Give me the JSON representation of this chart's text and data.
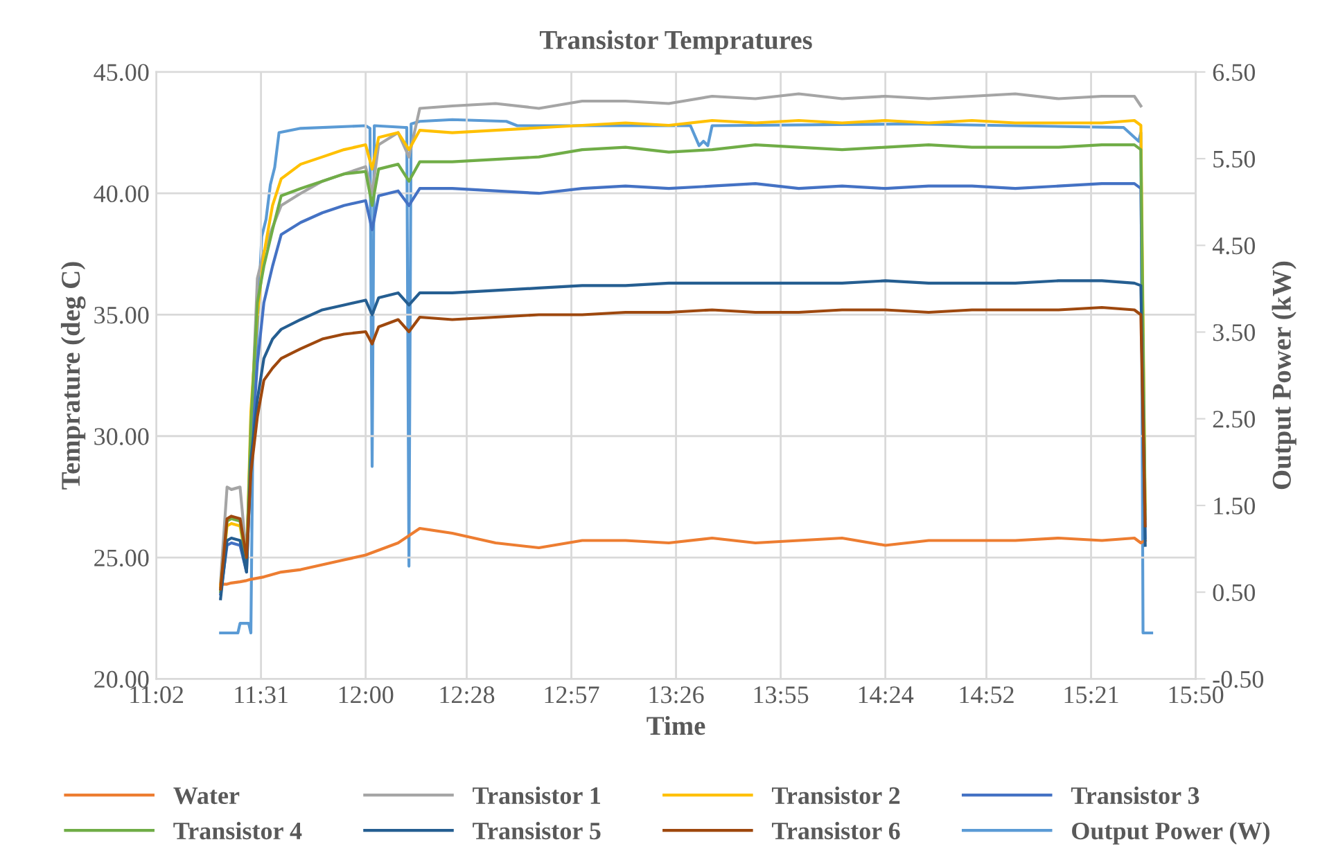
{
  "chart_data": {
    "type": "line",
    "title": "Transistor Tempratures",
    "xlabel": "Time",
    "ylabel": "Temprature (deg C)",
    "y2label": "Output Power (kW)",
    "x": [
      11.33,
      11.36,
      11.38,
      11.42,
      11.45,
      11.47,
      11.5,
      11.53,
      11.57,
      11.61,
      11.7,
      11.8,
      11.9,
      12.0,
      12.03,
      12.06,
      12.15,
      12.2,
      12.25,
      12.4,
      12.6,
      12.8,
      13.0,
      13.2,
      13.4,
      13.6,
      13.8,
      14.0,
      14.2,
      14.4,
      14.6,
      14.8,
      15.0,
      15.2,
      15.4,
      15.55,
      15.58,
      15.6
    ],
    "series": [
      {
        "name": "Water",
        "color": "#ed7d31",
        "values": [
          23.9,
          23.9,
          23.95,
          24.0,
          24.05,
          24.1,
          24.15,
          24.2,
          24.3,
          24.4,
          24.5,
          24.7,
          24.9,
          25.1,
          25.2,
          25.3,
          25.6,
          25.9,
          26.2,
          26.0,
          25.6,
          25.4,
          25.7,
          25.7,
          25.6,
          25.8,
          25.6,
          25.7,
          25.8,
          25.5,
          25.7,
          25.7,
          25.7,
          25.8,
          25.7,
          25.8,
          25.6,
          25.7
        ]
      },
      {
        "name": "Transistor 1",
        "color": "#a5a5a5",
        "values": [
          24.0,
          27.9,
          27.8,
          27.9,
          25.0,
          30.0,
          36.5,
          37.6,
          38.6,
          39.5,
          40.0,
          40.5,
          40.8,
          41.1,
          40.0,
          42.0,
          42.5,
          41.5,
          43.5,
          43.6,
          43.7,
          43.5,
          43.8,
          43.8,
          43.7,
          44.0,
          43.9,
          44.1,
          43.9,
          44.0,
          43.9,
          44.0,
          44.1,
          43.9,
          44.0,
          44.0,
          43.6,
          null
        ]
      },
      {
        "name": "Transistor 2",
        "color": "#ffc000",
        "values": [
          23.8,
          26.3,
          26.4,
          26.3,
          24.8,
          31.0,
          35.0,
          37.5,
          39.5,
          40.6,
          41.2,
          41.5,
          41.8,
          42.0,
          41.0,
          42.3,
          42.5,
          41.8,
          42.6,
          42.5,
          42.6,
          42.7,
          42.8,
          42.9,
          42.8,
          43.0,
          42.9,
          43.0,
          42.9,
          43.0,
          42.9,
          43.0,
          42.9,
          42.9,
          42.9,
          43.0,
          42.8,
          27.0
        ]
      },
      {
        "name": "Transistor 3",
        "color": "#4472c4",
        "values": [
          23.5,
          25.5,
          25.6,
          25.5,
          24.4,
          29.0,
          33.0,
          35.5,
          37.0,
          38.3,
          38.8,
          39.2,
          39.5,
          39.7,
          38.5,
          39.9,
          40.1,
          39.5,
          40.2,
          40.2,
          40.1,
          40.0,
          40.2,
          40.3,
          40.2,
          40.3,
          40.4,
          40.2,
          40.3,
          40.2,
          40.3,
          40.3,
          40.2,
          40.3,
          40.4,
          40.4,
          40.2,
          25.8
        ]
      },
      {
        "name": "Transistor 4",
        "color": "#70ad47",
        "values": [
          23.6,
          26.5,
          26.6,
          26.5,
          24.7,
          30.5,
          35.5,
          37.0,
          38.5,
          39.9,
          40.2,
          40.5,
          40.8,
          40.9,
          39.5,
          41.0,
          41.2,
          40.5,
          41.3,
          41.3,
          41.4,
          41.5,
          41.8,
          41.9,
          41.7,
          41.8,
          42.0,
          41.9,
          41.8,
          41.9,
          42.0,
          41.9,
          41.9,
          41.9,
          42.0,
          42.0,
          41.8,
          26.6
        ]
      },
      {
        "name": "Transistor 5",
        "color": "#255e91",
        "values": [
          23.3,
          25.7,
          25.8,
          25.7,
          24.4,
          29.0,
          31.5,
          33.2,
          34.0,
          34.4,
          34.8,
          35.2,
          35.4,
          35.6,
          35.0,
          35.7,
          35.9,
          35.4,
          35.9,
          35.9,
          36.0,
          36.1,
          36.2,
          36.2,
          36.3,
          36.3,
          36.3,
          36.3,
          36.3,
          36.4,
          36.3,
          36.3,
          36.3,
          36.4,
          36.4,
          36.3,
          36.2,
          25.5
        ]
      },
      {
        "name": "Transistor 6",
        "color": "#9e480e",
        "values": [
          23.7,
          26.6,
          26.7,
          26.6,
          25.0,
          28.5,
          30.8,
          32.3,
          32.8,
          33.2,
          33.6,
          34.0,
          34.2,
          34.3,
          33.8,
          34.5,
          34.8,
          34.3,
          34.9,
          34.8,
          34.9,
          35.0,
          35.0,
          35.1,
          35.1,
          35.2,
          35.1,
          35.1,
          35.2,
          35.2,
          35.1,
          35.2,
          35.2,
          35.2,
          35.3,
          35.2,
          35.0,
          26.3
        ]
      },
      {
        "name": "Output Power (W)",
        "color": "#5b9bd5",
        "axis": "y2",
        "x": [
          11.33,
          11.41,
          11.42,
          11.46,
          11.47,
          11.48,
          11.52,
          11.54,
          11.56,
          11.58,
          11.6,
          11.7,
          12.0,
          12.02,
          12.03,
          12.04,
          12.18,
          12.19,
          12.2,
          12.21,
          12.25,
          12.4,
          12.65,
          12.7,
          13.5,
          13.54,
          13.56,
          13.58,
          13.6,
          14.5,
          15.5,
          15.57,
          15.58,
          15.59,
          15.63
        ],
        "values": [
          0.03,
          0.03,
          0.14,
          0.14,
          0.03,
          2.5,
          4.6,
          4.8,
          5.2,
          5.4,
          5.8,
          5.85,
          5.88,
          5.85,
          1.95,
          5.88,
          5.86,
          5.86,
          0.8,
          5.9,
          5.93,
          5.95,
          5.93,
          5.88,
          5.88,
          5.65,
          5.7,
          5.65,
          5.88,
          5.9,
          5.86,
          5.7,
          5.8,
          0.03,
          0.03
        ]
      }
    ],
    "xlim": [
      11.0333,
      15.8333
    ],
    "xticks": [
      {
        "value": 11.0333,
        "label": "11:02"
      },
      {
        "value": 11.5167,
        "label": "11:31"
      },
      {
        "value": 12.0,
        "label": "12:00"
      },
      {
        "value": 12.4667,
        "label": "12:28"
      },
      {
        "value": 12.95,
        "label": "12:57"
      },
      {
        "value": 13.4333,
        "label": "13:26"
      },
      {
        "value": 13.9167,
        "label": "13:55"
      },
      {
        "value": 14.4,
        "label": "14:24"
      },
      {
        "value": 14.8667,
        "label": "14:52"
      },
      {
        "value": 15.35,
        "label": "15:21"
      },
      {
        "value": 15.8333,
        "label": "15:50"
      }
    ],
    "ylim": [
      20,
      45
    ],
    "yticks": [
      {
        "value": 20,
        "label": "20.00"
      },
      {
        "value": 25,
        "label": "25.00"
      },
      {
        "value": 30,
        "label": "30.00"
      },
      {
        "value": 35,
        "label": "35.00"
      },
      {
        "value": 40,
        "label": "40.00"
      },
      {
        "value": 45,
        "label": "45.00"
      }
    ],
    "y2lim": [
      -0.5,
      6.5
    ],
    "y2ticks": [
      {
        "value": -0.5,
        "label": "-0.50"
      },
      {
        "value": 0.5,
        "label": "0.50"
      },
      {
        "value": 1.5,
        "label": "1.50"
      },
      {
        "value": 2.5,
        "label": "2.50"
      },
      {
        "value": 3.5,
        "label": "3.50"
      },
      {
        "value": 4.5,
        "label": "4.50"
      },
      {
        "value": 5.5,
        "label": "5.50"
      },
      {
        "value": 6.5,
        "label": "6.50"
      }
    ],
    "grid": true,
    "legend": "bottom"
  }
}
